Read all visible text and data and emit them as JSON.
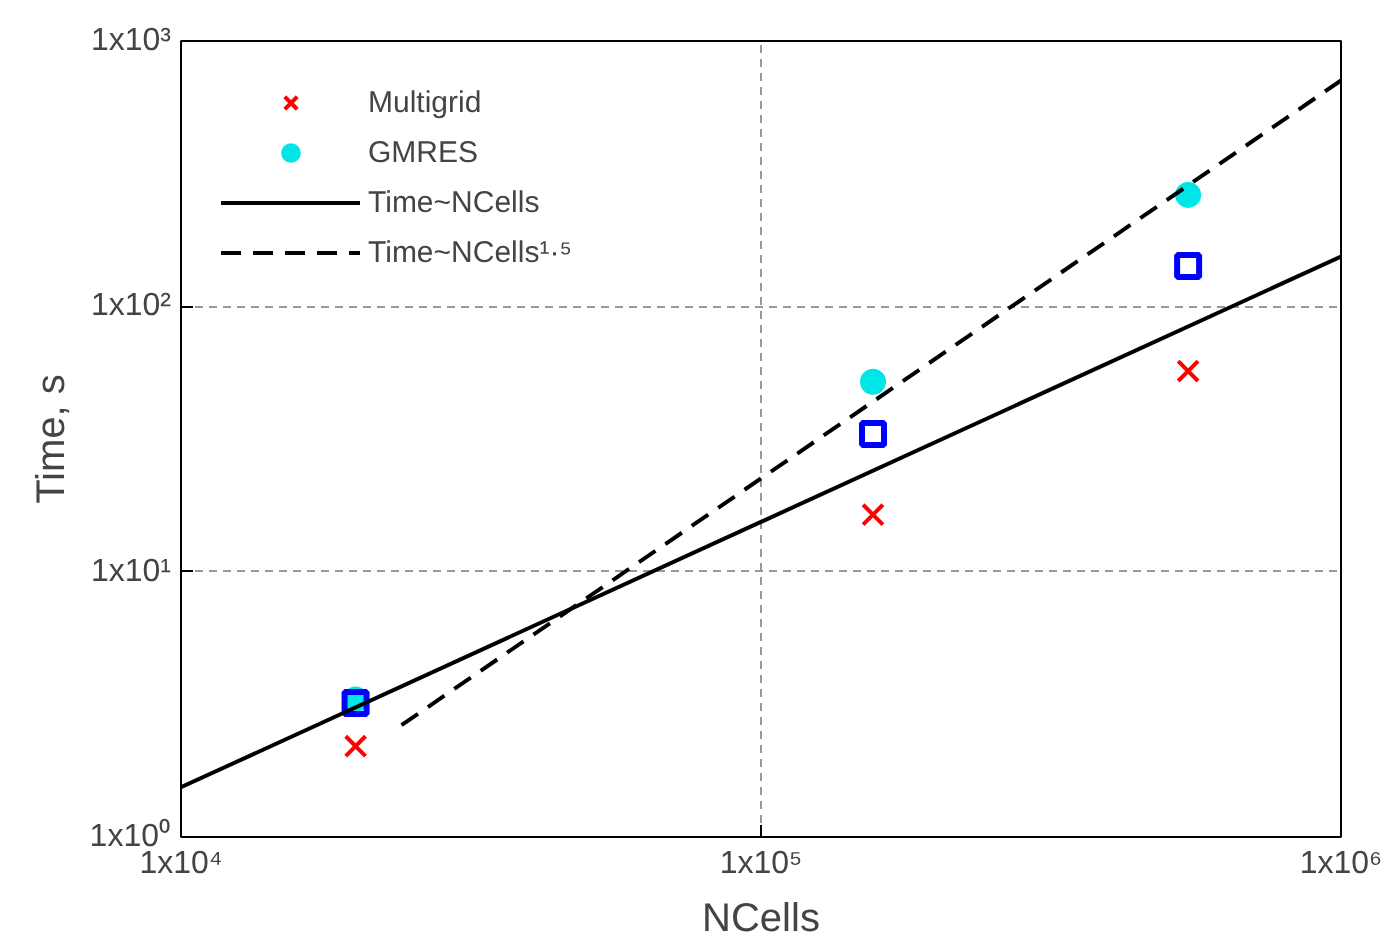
{
  "chart_data": {
    "type": "scatter",
    "xlabel": "NCells",
    "ylabel": "Time, s",
    "log": "xy",
    "xlim": [
      10000,
      1000000
    ],
    "ylim": [
      1,
      1000
    ],
    "xticks": [
      {
        "value": 10000,
        "label": "1x10⁴"
      },
      {
        "value": 100000,
        "label": "1x10⁵"
      },
      {
        "value": 1000000,
        "label": "1x10⁶"
      }
    ],
    "yticks": [
      {
        "value": 1,
        "label": "1x10⁰"
      },
      {
        "value": 10,
        "label": "1x10¹"
      },
      {
        "value": 100,
        "label": "1x10²"
      },
      {
        "value": 1000,
        "label": "1x10³"
      }
    ],
    "grid": true,
    "legend": "top left",
    "series": [
      {
        "name": "Multigrid",
        "marker": "cross",
        "color": "#ff0000",
        "x": [
          20000,
          156000,
          545000
        ],
        "values": [
          2.2,
          16.4,
          57
        ]
      },
      {
        "name": "GMRES",
        "marker": "circle",
        "color": "#00e5e5",
        "x": [
          20000,
          156000,
          545000
        ],
        "values": [
          3.3,
          52,
          263
        ]
      },
      {
        "marker": "square",
        "color": "#0000ff",
        "x": [
          20000,
          156000,
          545000
        ],
        "values": [
          3.2,
          33,
          142
        ]
      },
      {
        "name": "Time~NCells",
        "type": "line",
        "line_style": "solid",
        "marker": "none",
        "color": "#000000",
        "x": [
          10000,
          1000000
        ],
        "values": [
          1.54,
          154
        ]
      },
      {
        "name": "Time~NCells¹·⁵",
        "type": "line",
        "line_style": "dashed",
        "marker": "none",
        "color": "#000000",
        "x": [
          24000,
          1000000
        ],
        "values": [
          2.64,
          710
        ]
      }
    ]
  }
}
